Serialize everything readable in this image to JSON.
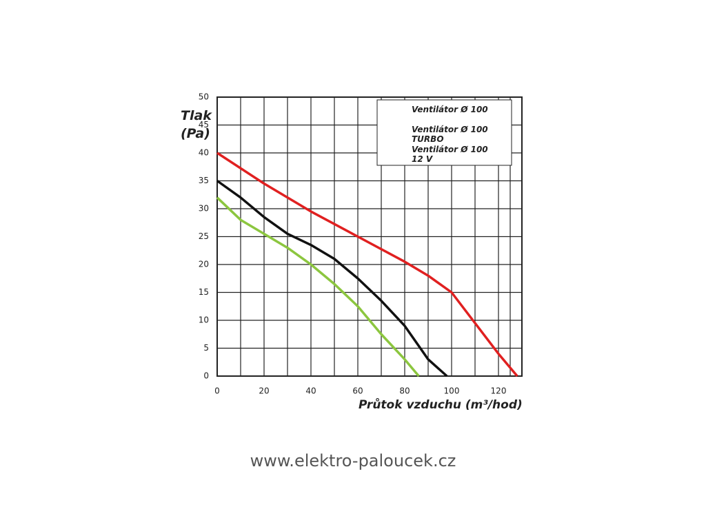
{
  "chart_data": {
    "type": "line",
    "y_label": "Tlak (Pa)",
    "x_label": "Průtok vzduchu (m³/hod)",
    "source": "www.elektro-paloucek.cz",
    "xlim": [
      0,
      130
    ],
    "xticks": [
      0,
      20,
      40,
      60,
      80,
      100,
      120
    ],
    "ylim": [
      0,
      50
    ],
    "yticks": [
      0,
      5,
      10,
      15,
      20,
      25,
      30,
      35,
      40,
      45,
      50
    ],
    "grid": true,
    "legend": "upper right",
    "series": [
      {
        "name": "Ventilátor Ø 100",
        "color": "#111111",
        "x": [
          0,
          10,
          20,
          30,
          40,
          50,
          60,
          70,
          80,
          90,
          98
        ],
        "values": [
          35,
          32,
          28.5,
          25.5,
          23.5,
          21,
          17.5,
          13.5,
          9,
          3,
          0
        ]
      },
      {
        "name": "Ventilátor Ø 100 TURBO",
        "color": "#e02020",
        "x": [
          0,
          20,
          40,
          60,
          80,
          90,
          100,
          110,
          120,
          128
        ],
        "values": [
          40,
          34.5,
          29.5,
          25,
          20.5,
          18,
          15,
          9.5,
          4,
          0
        ]
      },
      {
        "name": "Ventilátor Ø 100 12 V",
        "color": "#8cc63f",
        "x": [
          0,
          10,
          20,
          30,
          40,
          50,
          60,
          70,
          80,
          86
        ],
        "values": [
          32,
          28,
          25.5,
          23,
          20,
          16.5,
          12.5,
          7.5,
          3,
          0
        ]
      }
    ]
  }
}
